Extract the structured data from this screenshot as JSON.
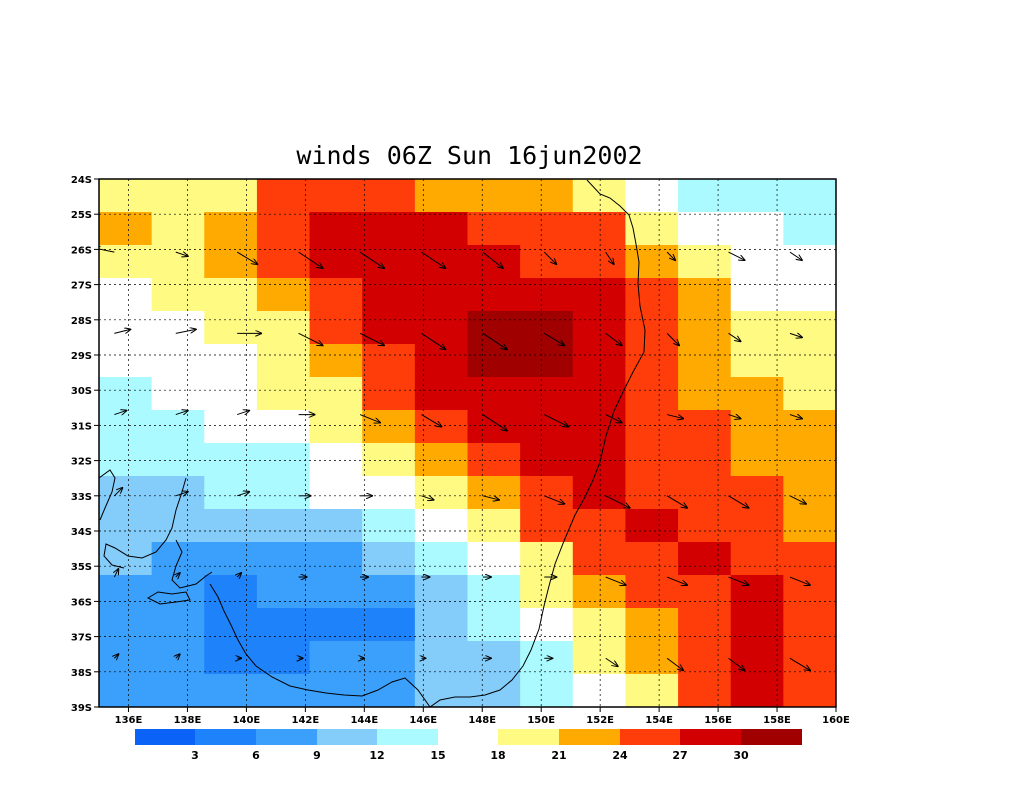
{
  "chart_data": {
    "type": "heatmap",
    "title": "winds 06Z Sun 16jun2002",
    "x_ticks": [
      "136E",
      "138E",
      "140E",
      "142E",
      "144E",
      "146E",
      "148E",
      "150E",
      "152E",
      "154E",
      "156E",
      "158E",
      "160E"
    ],
    "y_ticks": [
      "24S",
      "25S",
      "26S",
      "27S",
      "28S",
      "29S",
      "30S",
      "31S",
      "32S",
      "33S",
      "34S",
      "35S",
      "36S",
      "37S",
      "38S",
      "39S"
    ],
    "xlim": [
      135,
      160
    ],
    "ylim": [
      -39,
      -24
    ],
    "grid": true,
    "colorbar": {
      "levels": [
        3,
        6,
        9,
        12,
        15,
        18,
        21,
        24,
        27,
        30
      ],
      "colors": [
        "#0b62f6",
        "#1e82fa",
        "#3ba0fc",
        "#84cdfa",
        "#aafaff",
        "#ffffff",
        "#fffa82",
        "#ffaa00",
        "#ff3d0a",
        "#d20000",
        "#a00000"
      ]
    },
    "grid_values": [
      [
        20,
        19,
        20,
        24,
        26,
        24,
        23,
        22,
        22,
        20,
        16,
        14,
        14,
        14
      ],
      [
        21,
        20,
        22,
        24,
        28,
        28,
        27,
        25,
        25,
        24,
        20,
        16,
        15,
        13
      ],
      [
        20,
        20,
        21,
        24,
        27,
        28,
        28,
        27,
        26,
        25,
        23,
        18,
        16,
        15
      ],
      [
        17,
        18,
        20,
        22,
        26,
        27,
        29,
        29,
        29,
        27,
        25,
        21,
        17,
        17
      ],
      [
        16,
        17,
        19,
        20,
        24,
        27,
        29,
        30,
        30,
        28,
        26,
        22,
        19,
        18
      ],
      [
        15,
        16,
        17,
        19,
        22,
        26,
        28,
        30,
        30,
        29,
        26,
        22,
        20,
        18
      ],
      [
        14,
        15,
        16,
        18,
        20,
        24,
        27,
        29,
        29,
        29,
        26,
        23,
        21,
        19
      ],
      [
        13,
        14,
        15,
        16,
        18,
        21,
        24,
        27,
        28,
        28,
        26,
        24,
        22,
        21
      ],
      [
        12,
        12,
        13,
        14,
        16,
        18,
        22,
        25,
        27,
        28,
        26,
        25,
        23,
        21
      ],
      [
        10,
        11,
        12,
        13,
        15,
        17,
        19,
        23,
        26,
        27,
        26,
        25,
        24,
        22
      ],
      [
        9,
        9,
        9,
        9,
        10,
        13,
        16,
        19,
        24,
        26,
        27,
        26,
        25,
        23
      ],
      [
        9,
        8,
        7,
        7,
        8,
        10,
        13,
        16,
        20,
        24,
        25,
        27,
        26,
        24
      ],
      [
        8,
        7,
        5,
        6,
        6,
        7,
        11,
        14,
        18,
        22,
        24,
        26,
        27,
        25
      ],
      [
        7,
        6,
        5,
        4,
        3,
        5,
        9,
        12,
        16,
        20,
        23,
        26,
        29,
        26
      ],
      [
        7,
        6,
        5,
        5,
        6,
        6,
        9,
        11,
        14,
        18,
        22,
        25,
        28,
        25
      ],
      [
        8,
        7,
        6,
        6,
        7,
        8,
        9,
        11,
        13,
        16,
        20,
        24,
        27,
        24
      ]
    ],
    "wind_vectors": [
      [
        [
          -0.5,
          0.1
        ],
        [
          0.3,
          -0.1
        ],
        [
          0.5,
          -0.3
        ],
        [
          0.6,
          -0.4
        ],
        [
          0.6,
          -0.4
        ],
        [
          0.6,
          -0.4
        ],
        [
          0.5,
          -0.4
        ],
        [
          0.3,
          -0.3
        ],
        [
          0.2,
          -0.3
        ],
        [
          0.2,
          -0.2
        ],
        [
          0.4,
          -0.2
        ],
        [
          0.3,
          -0.2
        ]
      ],
      [
        [
          0.4,
          0.1
        ],
        [
          0.5,
          0.1
        ],
        [
          0.6,
          0
        ],
        [
          0.6,
          -0.3
        ],
        [
          0.6,
          -0.3
        ],
        [
          0.6,
          -0.4
        ],
        [
          0.6,
          -0.4
        ],
        [
          0.5,
          -0.3
        ],
        [
          0.4,
          -0.3
        ],
        [
          0.3,
          -0.3
        ],
        [
          0.3,
          -0.2
        ],
        [
          0.3,
          -0.1
        ]
      ],
      [
        [
          0.3,
          0.1
        ],
        [
          0.3,
          0.1
        ],
        [
          0.3,
          0.1
        ],
        [
          0.4,
          0
        ],
        [
          0.5,
          -0.2
        ],
        [
          0.5,
          -0.3
        ],
        [
          0.6,
          -0.4
        ],
        [
          0.6,
          -0.3
        ],
        [
          0.4,
          -0.2
        ],
        [
          0.4,
          -0.1
        ],
        [
          0.3,
          -0.1
        ],
        [
          0.3,
          -0.1
        ]
      ],
      [
        [
          0.2,
          0.2
        ],
        [
          0.3,
          0.1
        ],
        [
          0.3,
          0.1
        ],
        [
          0.3,
          0
        ],
        [
          0.3,
          0
        ],
        [
          0.3,
          -0.1
        ],
        [
          0.4,
          -0.1
        ],
        [
          0.5,
          -0.2
        ],
        [
          0.6,
          -0.3
        ],
        [
          0.5,
          -0.3
        ],
        [
          0.5,
          -0.3
        ],
        [
          0.4,
          -0.2
        ]
      ],
      [
        [
          0.1,
          0.2
        ],
        [
          0.1,
          0.1
        ],
        [
          0.1,
          0.1
        ],
        [
          0.2,
          0
        ],
        [
          0.2,
          0
        ],
        [
          0.2,
          0
        ],
        [
          0.2,
          0
        ],
        [
          0.3,
          0
        ],
        [
          0.5,
          -0.2
        ],
        [
          0.5,
          -0.2
        ],
        [
          0.5,
          -0.2
        ],
        [
          0.5,
          -0.2
        ]
      ],
      [
        [
          0.1,
          0.1
        ],
        [
          0.1,
          0.1
        ],
        [
          0.1,
          0
        ],
        [
          0.1,
          0
        ],
        [
          0.1,
          0
        ],
        [
          0.1,
          0
        ],
        [
          0.2,
          0
        ],
        [
          0.2,
          0
        ],
        [
          0.3,
          -0.2
        ],
        [
          0.4,
          -0.3
        ],
        [
          0.4,
          -0.3
        ],
        [
          0.5,
          -0.3
        ]
      ]
    ]
  }
}
